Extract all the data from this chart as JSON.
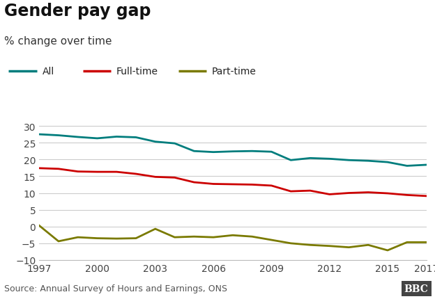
{
  "title": "Gender pay gap",
  "subtitle": "% change over time",
  "source": "Source: Annual Survey of Hours and Earnings, ONS",
  "years": [
    1997,
    1998,
    1999,
    2000,
    2001,
    2002,
    2003,
    2004,
    2005,
    2006,
    2007,
    2008,
    2009,
    2010,
    2011,
    2012,
    2013,
    2014,
    2015,
    2016,
    2017
  ],
  "all": [
    27.5,
    27.2,
    26.7,
    26.3,
    26.8,
    26.6,
    25.3,
    24.8,
    22.5,
    22.2,
    22.4,
    22.5,
    22.3,
    19.8,
    20.4,
    20.2,
    19.8,
    19.6,
    19.2,
    18.1,
    18.4
  ],
  "fulltime": [
    17.4,
    17.2,
    16.4,
    16.3,
    16.3,
    15.7,
    14.8,
    14.6,
    13.2,
    12.7,
    12.6,
    12.5,
    12.2,
    10.5,
    10.7,
    9.6,
    10.0,
    10.2,
    9.9,
    9.4,
    9.1
  ],
  "parttime": [
    0.3,
    -4.4,
    -3.2,
    -3.5,
    -3.6,
    -3.5,
    -0.7,
    -3.2,
    -3.0,
    -3.2,
    -2.6,
    -3.0,
    -4.0,
    -5.0,
    -5.5,
    -5.8,
    -6.2,
    -5.5,
    -7.1,
    -4.7,
    -4.7
  ],
  "all_color": "#007d7d",
  "fulltime_color": "#cc0000",
  "parttime_color": "#7a7a00",
  "background_color": "#ffffff",
  "grid_color": "#cccccc",
  "ylim": [
    -10,
    32
  ],
  "yticks": [
    -10,
    -5,
    0,
    5,
    10,
    15,
    20,
    25,
    30
  ],
  "xticks": [
    1997,
    2000,
    2003,
    2006,
    2009,
    2012,
    2015,
    2017
  ],
  "line_width": 2.0,
  "title_fontsize": 17,
  "subtitle_fontsize": 11,
  "tick_fontsize": 10,
  "legend_fontsize": 10,
  "source_fontsize": 9
}
